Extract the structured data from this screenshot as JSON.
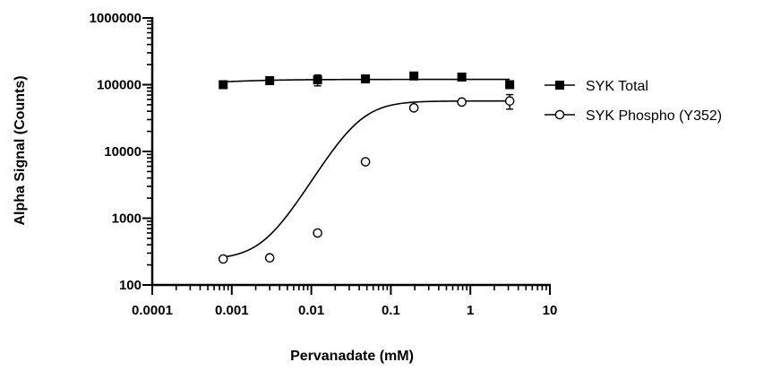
{
  "chart_data": {
    "type": "scatter",
    "title": "",
    "xlabel": "Pervanadate (mM)",
    "ylabel": "Alpha Signal (Counts)",
    "x_scale": "log",
    "y_scale": "log",
    "xlim": [
      0.0001,
      10
    ],
    "ylim": [
      100,
      1000000
    ],
    "x_ticks": [
      {
        "value": 0.0001,
        "label": "0.0001"
      },
      {
        "value": 0.001,
        "label": "0.001"
      },
      {
        "value": 0.01,
        "label": "0.01"
      },
      {
        "value": 0.1,
        "label": "0.1"
      },
      {
        "value": 1,
        "label": "1"
      },
      {
        "value": 10,
        "label": "10"
      }
    ],
    "y_ticks": [
      {
        "value": 100,
        "label": "100"
      },
      {
        "value": 1000,
        "label": "1000"
      },
      {
        "value": 10000,
        "label": "10000"
      },
      {
        "value": 100000,
        "label": "100000"
      },
      {
        "value": 1000000,
        "label": "1000000"
      }
    ],
    "grid": false,
    "legend_position": "right",
    "series": [
      {
        "name": "SYK Total",
        "marker": "filled-square",
        "color": "#000000",
        "x": [
          0.00078,
          0.003,
          0.012,
          0.048,
          0.195,
          0.78,
          3.125
        ],
        "y": [
          100000,
          115000,
          118000,
          122000,
          135000,
          130000,
          100000
        ],
        "error": [
          0,
          14000,
          22000,
          8000,
          0,
          0,
          0
        ],
        "fit": {
          "model": "four-parameter-logistic",
          "bottom": 95000,
          "top": 120000,
          "ec50": 0.0005,
          "hill": 1
        }
      },
      {
        "name": "SYK Phospho (Y352)",
        "marker": "open-circle",
        "color": "#000000",
        "x": [
          0.00078,
          0.003,
          0.012,
          0.048,
          0.195,
          0.78,
          3.125
        ],
        "y": [
          245,
          255,
          600,
          7000,
          45000,
          55000,
          57000
        ],
        "error": [
          0,
          0,
          0,
          0,
          0,
          0,
          14000
        ],
        "fit": {
          "model": "four-parameter-logistic",
          "bottom": 240,
          "top": 57000,
          "ec50": 0.04,
          "hill": 2
        }
      }
    ]
  }
}
